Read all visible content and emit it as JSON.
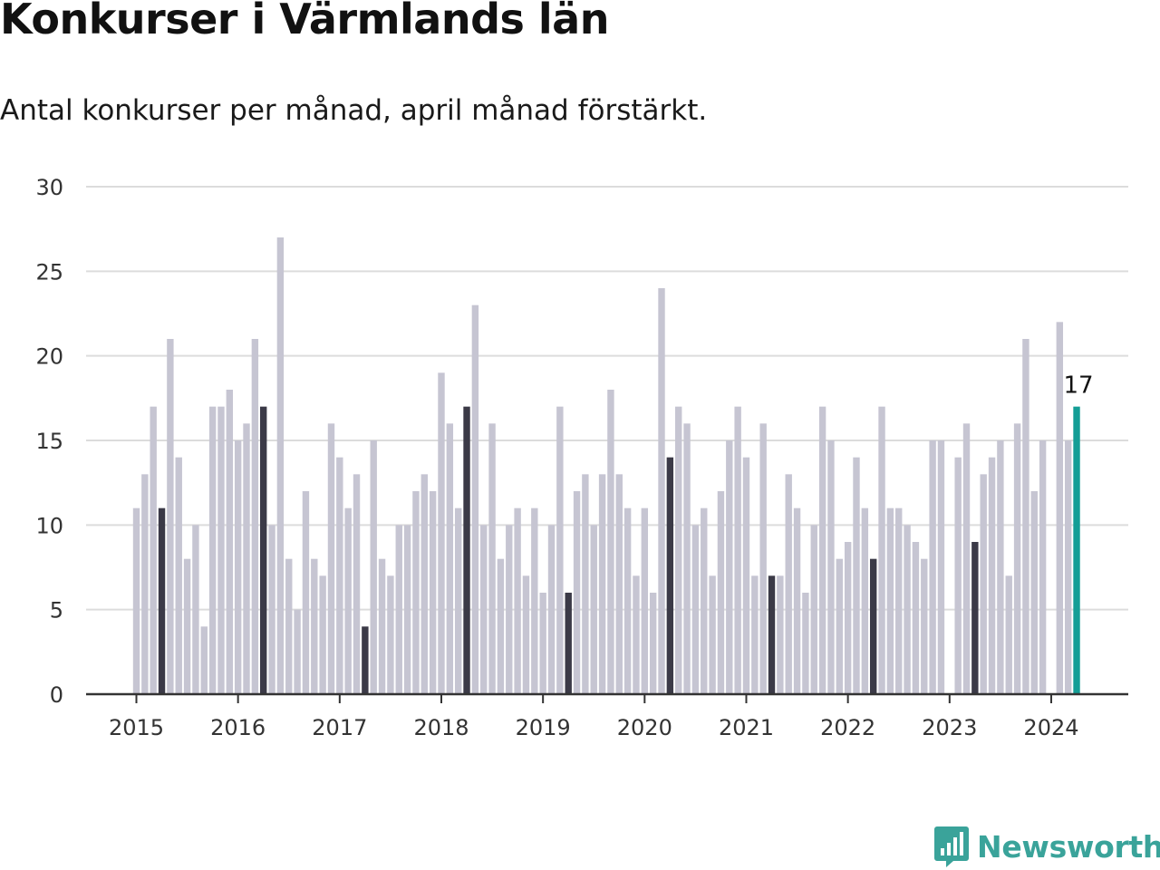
{
  "colors": {
    "normal_bar": "#c6c5d2",
    "april_bar": "#3b3a47",
    "latest_bar": "#149e96",
    "grid": "#dcdcdc",
    "axis": "#333333",
    "logo": "#3aa39a"
  },
  "logo": {
    "text": "Newsworthy",
    "icon": "chart-bubble-icon"
  },
  "chart_data": {
    "type": "bar",
    "title": "Konkurser i Värmlands län",
    "subtitle": "Antal konkurser per månad, april månad förstärkt.",
    "xlabel": "",
    "ylabel": "",
    "ylim": [
      0,
      30
    ],
    "y_ticks": [
      "0",
      "5",
      "10",
      "15",
      "20",
      "25",
      "30"
    ],
    "x_ticks": [
      "2015",
      "2016",
      "2017",
      "2018",
      "2019",
      "2020",
      "2021",
      "2022",
      "2023",
      "2024"
    ],
    "grid": true,
    "start_month": "2015-01",
    "end_month": "2024-04",
    "highlight": "April months darker; latest month in teal",
    "values": [
      11,
      13,
      17,
      11,
      21,
      14,
      8,
      10,
      4,
      17,
      17,
      18,
      15,
      16,
      21,
      17,
      10,
      27,
      8,
      5,
      12,
      8,
      7,
      16,
      14,
      11,
      13,
      4,
      15,
      8,
      7,
      10,
      10,
      12,
      13,
      12,
      19,
      16,
      11,
      17,
      23,
      10,
      16,
      8,
      10,
      11,
      7,
      11,
      6,
      10,
      17,
      6,
      12,
      13,
      10,
      13,
      18,
      13,
      11,
      7,
      11,
      6,
      24,
      14,
      17,
      16,
      10,
      11,
      7,
      12,
      15,
      17,
      14,
      7,
      16,
      7,
      7,
      13,
      11,
      6,
      10,
      17,
      15,
      8,
      9,
      14,
      11,
      8,
      17,
      11,
      11,
      10,
      9,
      8,
      15,
      15,
      0,
      14,
      16,
      9,
      13,
      14,
      15,
      7,
      16,
      21,
      12,
      15,
      0,
      22,
      15,
      17
    ],
    "latest_label": "17"
  }
}
